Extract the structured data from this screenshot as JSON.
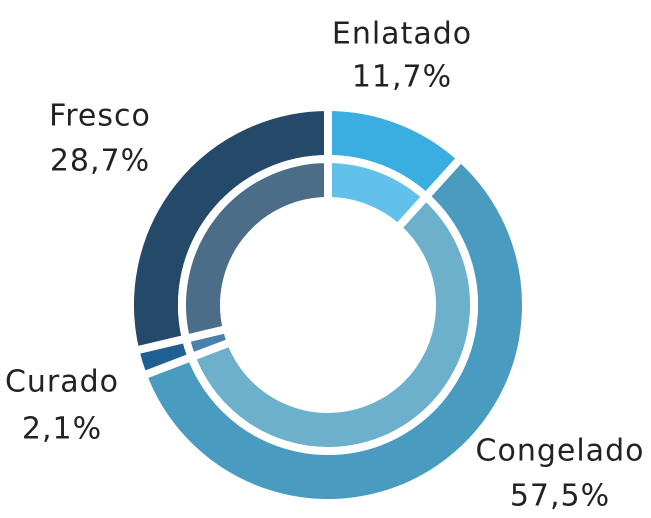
{
  "chart_data": {
    "type": "donut",
    "categories": [
      "Enlatado",
      "Congelado",
      "Curado",
      "Fresco"
    ],
    "values": [
      11.7,
      57.5,
      2.1,
      28.7
    ],
    "value_labels": [
      "11,7%",
      "57,5%",
      "2,1%",
      "28,7%"
    ],
    "colors": [
      "#3aaee0",
      "#4a9bc0",
      "#1f5f92",
      "#254a69"
    ],
    "inner_colors": [
      "#62c1ea",
      "#6cb0cc",
      "#4a80ab",
      "#4c6d88"
    ]
  }
}
